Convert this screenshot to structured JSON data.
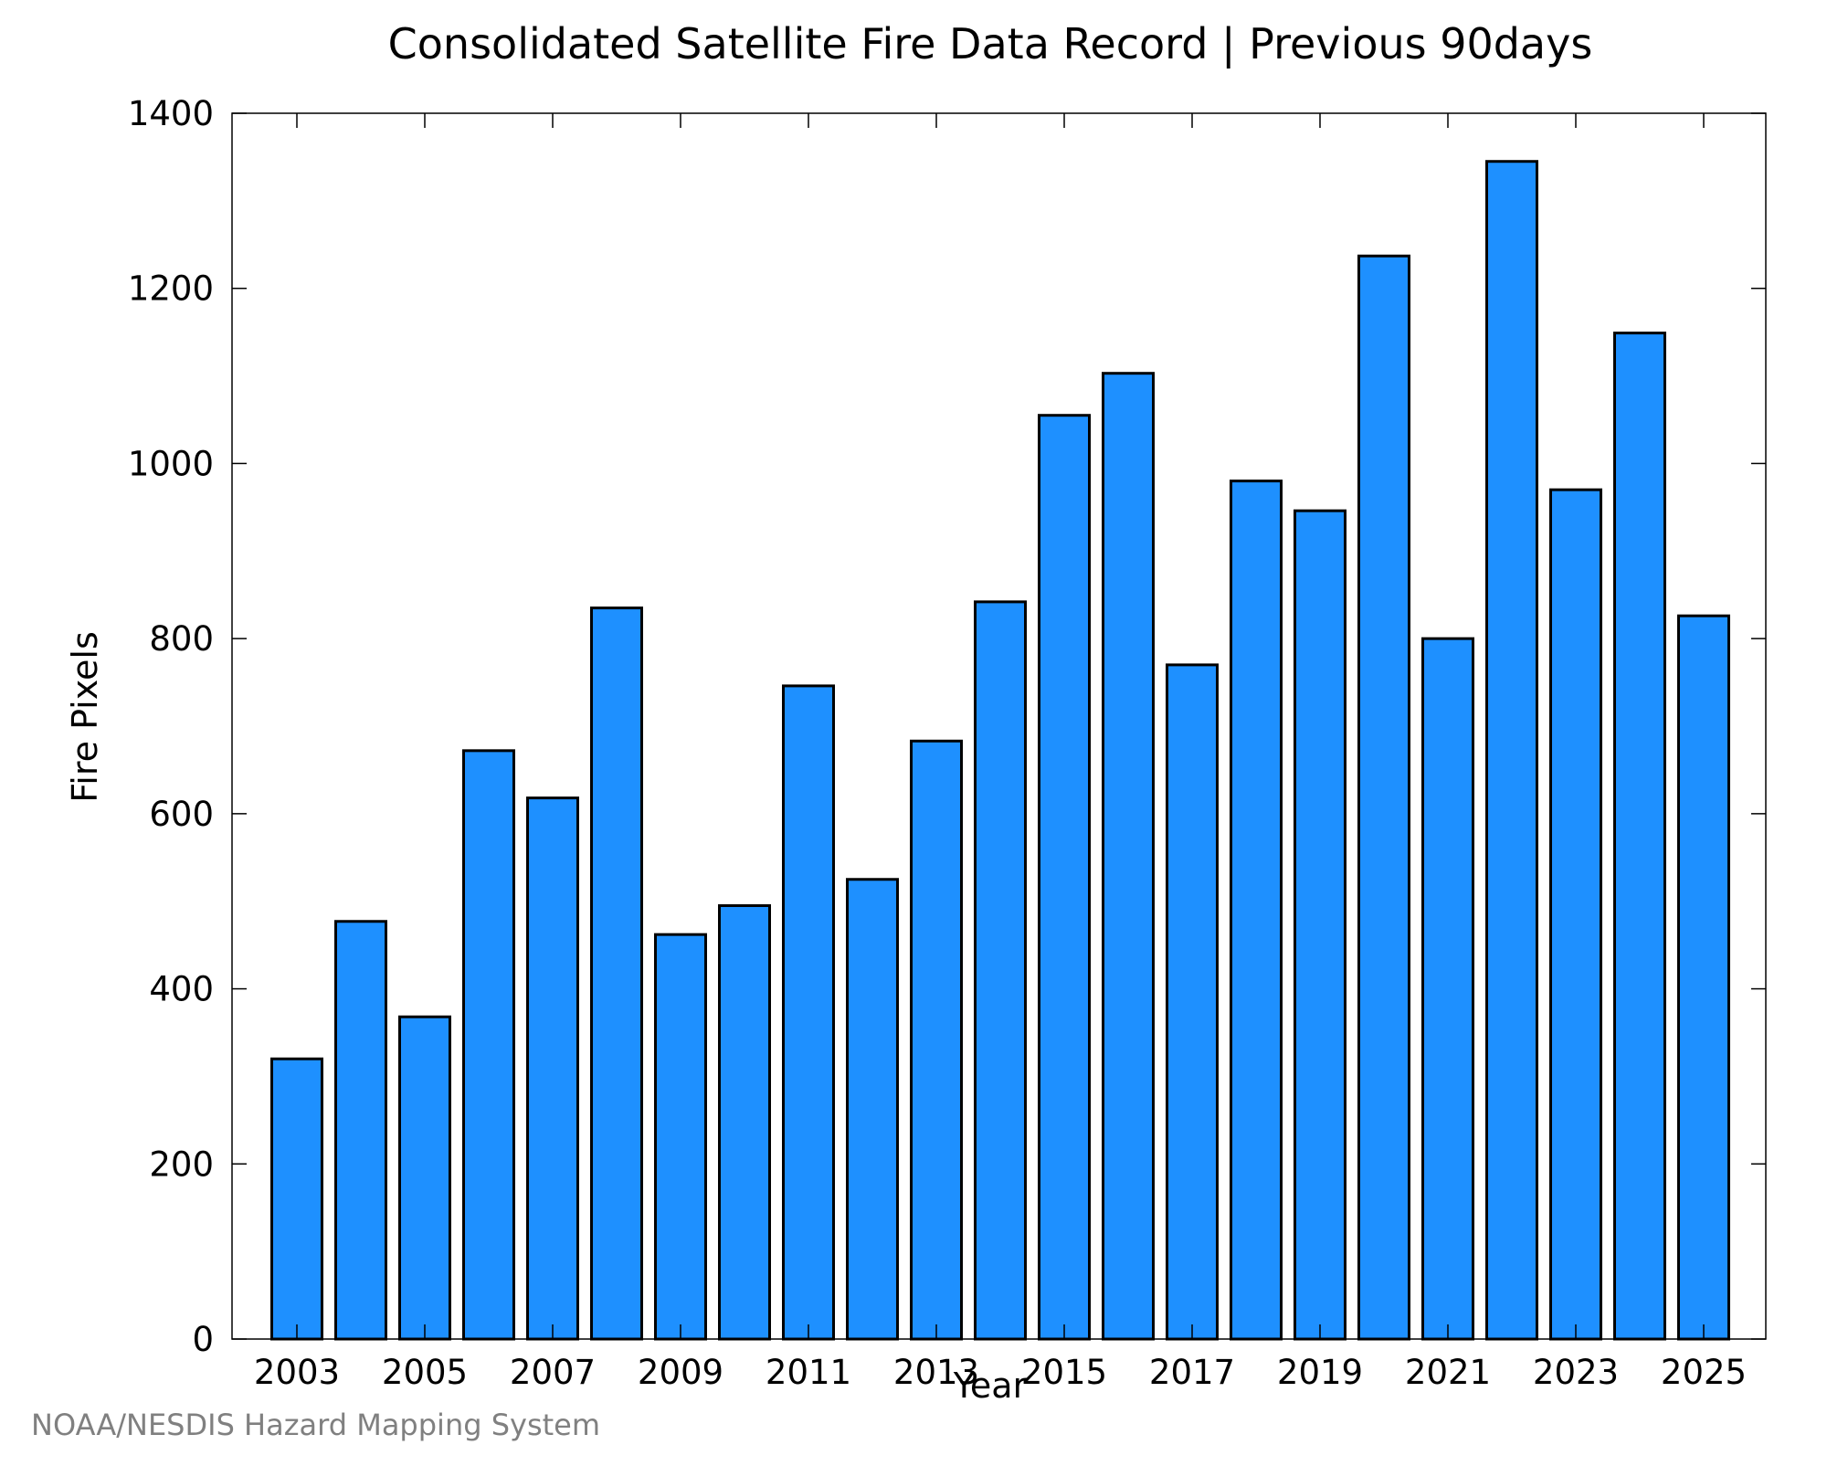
{
  "chart_data": {
    "type": "bar",
    "title": "Consolidated Satellite Fire Data Record | Previous 90days",
    "xlabel": "Year",
    "ylabel": "Fire Pixels",
    "ylim": [
      0,
      1400
    ],
    "yticks": [
      0,
      200,
      400,
      600,
      800,
      1000,
      1200,
      1400
    ],
    "xtick_labels": [
      "2003",
      "2005",
      "2007",
      "2009",
      "2011",
      "2013",
      "2015",
      "2017",
      "2019",
      "2021",
      "2023",
      "2025"
    ],
    "categories": [
      "2003",
      "2004",
      "2005",
      "2006",
      "2007",
      "2008",
      "2009",
      "2010",
      "2011",
      "2012",
      "2013",
      "2014",
      "2015",
      "2016",
      "2017",
      "2018",
      "2019",
      "2020",
      "2021",
      "2022",
      "2023",
      "2024",
      "2025"
    ],
    "values": [
      320,
      477,
      368,
      672,
      618,
      835,
      462,
      495,
      746,
      525,
      683,
      842,
      1055,
      1103,
      770,
      980,
      946,
      1237,
      800,
      1345,
      970,
      1149,
      826
    ],
    "bar_color": "#1E90FF",
    "grid": false,
    "legend": "none"
  },
  "credit": "NOAA/NESDIS Hazard Mapping System"
}
